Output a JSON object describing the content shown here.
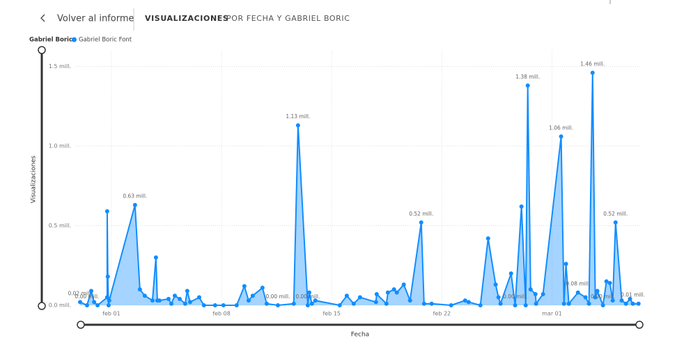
{
  "header": {
    "back": "Volver al informe",
    "tabs": [
      "VISUALIZACIONES",
      "POR FECHA Y GABRIEL BORIC"
    ]
  },
  "chart_data": {
    "type": "area",
    "legend_title": "Gabriel Boric",
    "x_label": "Fecha",
    "y_label": "Visualizaciones",
    "xlim": [
      -1.3,
      34.6
    ],
    "xticks": [
      {
        "value": 1,
        "label": "feb 01"
      },
      {
        "value": 8,
        "label": "feb 08"
      },
      {
        "value": 15,
        "label": "feb 15"
      },
      {
        "value": 22,
        "label": "feb 22"
      },
      {
        "value": 29,
        "label": "mar 01"
      }
    ],
    "ylim": [
      0,
      1.6
    ],
    "yticks": [
      {
        "value": 0,
        "label": "0.0 mill."
      },
      {
        "value": 0.5,
        "label": "0.5 mill."
      },
      {
        "value": 1.0,
        "label": "1.0 mill."
      },
      {
        "value": 1.5,
        "label": "1.5 mill."
      }
    ],
    "grid": true,
    "x": [
      -0.99,
      -0.55,
      -0.28,
      -0.1,
      0.12,
      0.73,
      0.73,
      0.77,
      0.82,
      0.86,
      2.5,
      2.81,
      3.12,
      3.61,
      3.83,
      3.92,
      4.05,
      4.63,
      4.81,
      5.03,
      5.34,
      5.69,
      5.82,
      6.0,
      6.58,
      6.88,
      7.59,
      8.12,
      8.96,
      9.45,
      9.72,
      9.98,
      10.6,
      10.87,
      11.58,
      12.59,
      12.86,
      13.48,
      13.57,
      13.74,
      13.96,
      15.51,
      15.96,
      16.4,
      16.8,
      17.81,
      17.86,
      18.48,
      18.57,
      18.96,
      19.14,
      19.58,
      19.98,
      20.69,
      20.87,
      21.35,
      22.59,
      23.48,
      23.7,
      24.45,
      24.94,
      25.42,
      25.6,
      25.73,
      26.4,
      26.66,
      27.06,
      27.33,
      27.46,
      27.64,
      27.95,
      27.99,
      28.43,
      29.58,
      29.76,
      29.89,
      30.07,
      30.65,
      31.13,
      31.35,
      31.58,
      31.75,
      31.88,
      32.24,
      32.46,
      32.68,
      32.86,
      33.04,
      33.43,
      33.7,
      33.96,
      34.14,
      34.5
    ],
    "series": [
      {
        "name": "Gabriel Boric Font",
        "color": "#118dff",
        "values": [
          0.02,
          0.0,
          0.09,
          0.02,
          0.0,
          0.05,
          0.59,
          0.18,
          0.0,
          0.03,
          0.63,
          0.1,
          0.06,
          0.03,
          0.3,
          0.03,
          0.03,
          0.04,
          0.01,
          0.06,
          0.04,
          0.01,
          0.09,
          0.02,
          0.05,
          0.0,
          0.0,
          0.0,
          0.0,
          0.12,
          0.03,
          0.06,
          0.11,
          0.01,
          0.0,
          0.01,
          1.13,
          0.0,
          0.08,
          0.01,
          0.03,
          0.0,
          0.06,
          0.01,
          0.05,
          0.02,
          0.07,
          0.01,
          0.08,
          0.1,
          0.08,
          0.13,
          0.03,
          0.52,
          0.01,
          0.01,
          0.0,
          0.03,
          0.02,
          0.0,
          0.42,
          0.13,
          0.05,
          0.01,
          0.2,
          0.0,
          0.62,
          0.0,
          1.38,
          0.1,
          0.07,
          0.01,
          0.07,
          1.06,
          0.01,
          0.26,
          0.01,
          0.08,
          0.05,
          0.01,
          1.46,
          0.05,
          0.09,
          0.0,
          0.15,
          0.14,
          0.03,
          0.52,
          0.03,
          0.01,
          0.04,
          0.01,
          0.01
        ],
        "value_labels": [
          "0.02 mill.",
          "0.00 mill.",
          null,
          null,
          null,
          null,
          null,
          null,
          null,
          null,
          "0.63 mill.",
          null,
          null,
          null,
          null,
          null,
          null,
          null,
          null,
          null,
          null,
          null,
          null,
          null,
          null,
          null,
          null,
          null,
          null,
          null,
          null,
          null,
          null,
          null,
          "0.00 mill.",
          null,
          "1.13 mill.",
          "0.00 mill.",
          null,
          null,
          null,
          null,
          null,
          null,
          null,
          null,
          null,
          null,
          null,
          null,
          null,
          null,
          null,
          "0.52 mill.",
          null,
          null,
          null,
          null,
          null,
          null,
          null,
          null,
          null,
          null,
          null,
          "0.00 mill.",
          null,
          null,
          "1.38 mill.",
          null,
          null,
          null,
          null,
          "1.06 mill.",
          null,
          null,
          null,
          "0.08 mill.",
          null,
          null,
          "1.46 mill.",
          null,
          null,
          "0.00 mill.",
          null,
          null,
          null,
          "0.52 mill.",
          null,
          null,
          null,
          "0.01 mill.",
          null
        ]
      }
    ]
  }
}
